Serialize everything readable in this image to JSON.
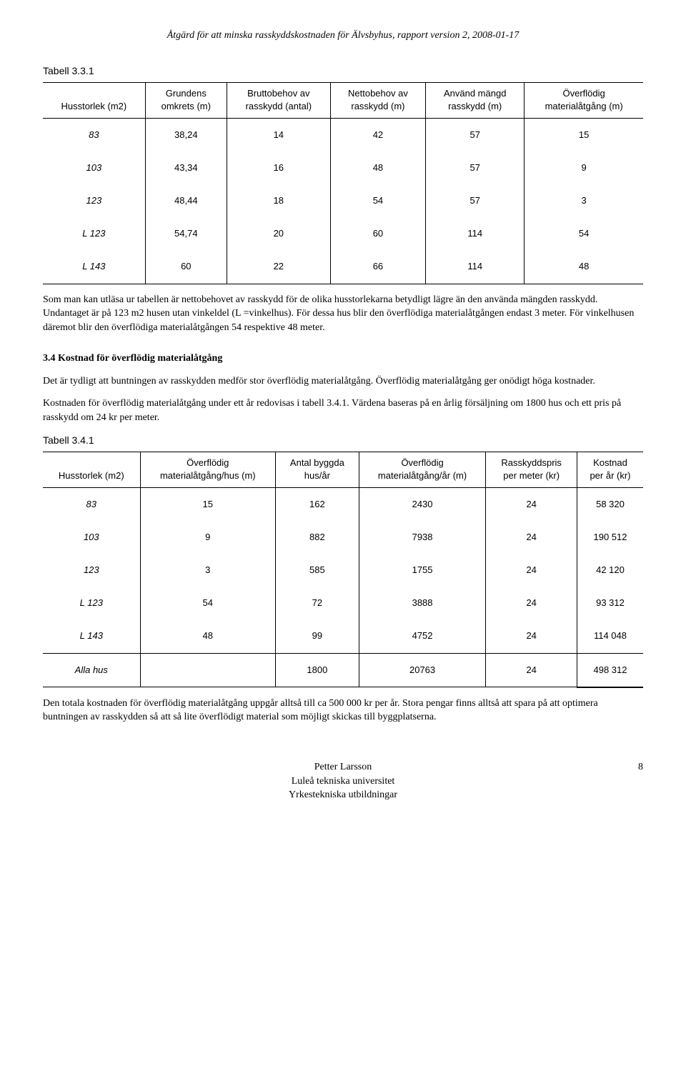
{
  "header": "Åtgärd för att minska rasskyddskostnaden för Älvsbyhus, rapport version 2, 2008-01-17",
  "table1": {
    "caption": "Tabell 3.3.1",
    "headers": [
      {
        "l1": "",
        "l2": "Husstorlek (m2)"
      },
      {
        "l1": "Grundens",
        "l2": "omkrets (m)"
      },
      {
        "l1": "Bruttobehov av",
        "l2": "rasskydd (antal)"
      },
      {
        "l1": "Nettobehov av",
        "l2": "rasskydd (m)"
      },
      {
        "l1": "Använd mängd",
        "l2": "rasskydd (m)"
      },
      {
        "l1": "Överflödig",
        "l2": "materialåtgång (m)"
      }
    ],
    "rows": [
      [
        "83",
        "38,24",
        "14",
        "42",
        "57",
        "15"
      ],
      [
        "103",
        "43,34",
        "16",
        "48",
        "57",
        "9"
      ],
      [
        "123",
        "48,44",
        "18",
        "54",
        "57",
        "3"
      ],
      [
        "L 123",
        "54,74",
        "20",
        "60",
        "114",
        "54"
      ],
      [
        "L 143",
        "60",
        "22",
        "66",
        "114",
        "48"
      ]
    ]
  },
  "para1": "Som man kan utläsa ur tabellen är nettobehovet av rasskydd för de olika husstorlekarna betydligt lägre än den använda mängden rasskydd. Undantaget är på 123 m2 husen utan vinkeldel (L =vinkelhus). För dessa hus blir den överflödiga materialåtgången endast 3 meter. För vinkelhusen däremot blir den överflödiga materialåtgången 54 respektive 48 meter.",
  "section34": {
    "title": "3.4 Kostnad för överflödig materialåtgång",
    "p1": "Det är tydligt att buntningen av rasskydden medför stor överflödig materialåtgång. Överflödig materialåtgång ger onödigt höga kostnader.",
    "p2": "Kostnaden för överflödig materialåtgång under ett år redovisas i tabell 3.4.1. Värdena baseras på en årlig försäljning om 1800 hus och ett pris på rasskydd om 24 kr per meter."
  },
  "table2": {
    "caption": "Tabell 3.4.1",
    "headers": [
      {
        "l1": "",
        "l2": "Husstorlek (m2)"
      },
      {
        "l1": "Överflödig",
        "l2": "materialåtgång/hus (m)"
      },
      {
        "l1": "Antal byggda",
        "l2": "hus/år"
      },
      {
        "l1": "Överflödig",
        "l2": "materialåtgång/år (m)"
      },
      {
        "l1": "Rasskyddspris",
        "l2": "per meter (kr)"
      },
      {
        "l1": "Kostnad",
        "l2": "per år (kr)"
      }
    ],
    "rows": [
      [
        "83",
        "15",
        "162",
        "2430",
        "24",
        "58 320"
      ],
      [
        "103",
        "9",
        "882",
        "7938",
        "24",
        "190 512"
      ],
      [
        "123",
        "3",
        "585",
        "1755",
        "24",
        "42 120"
      ],
      [
        "L 123",
        "54",
        "72",
        "3888",
        "24",
        "93 312"
      ],
      [
        "L 143",
        "48",
        "99",
        "4752",
        "24",
        "114 048"
      ]
    ],
    "total": [
      "Alla hus",
      "",
      "1800",
      "20763",
      "24",
      "498 312"
    ]
  },
  "para2": "Den totala kostnaden för överflödig materialåtgång uppgår alltså till ca 500 000 kr per år. Stora pengar finns alltså att spara på att optimera buntningen av rasskydden så att så lite överflödigt material som möjligt skickas till byggplatserna.",
  "footer": {
    "l1": "Petter Larsson",
    "l2": "Luleå tekniska universitet",
    "l3": "Yrkestekniska utbildningar",
    "page": "8"
  }
}
